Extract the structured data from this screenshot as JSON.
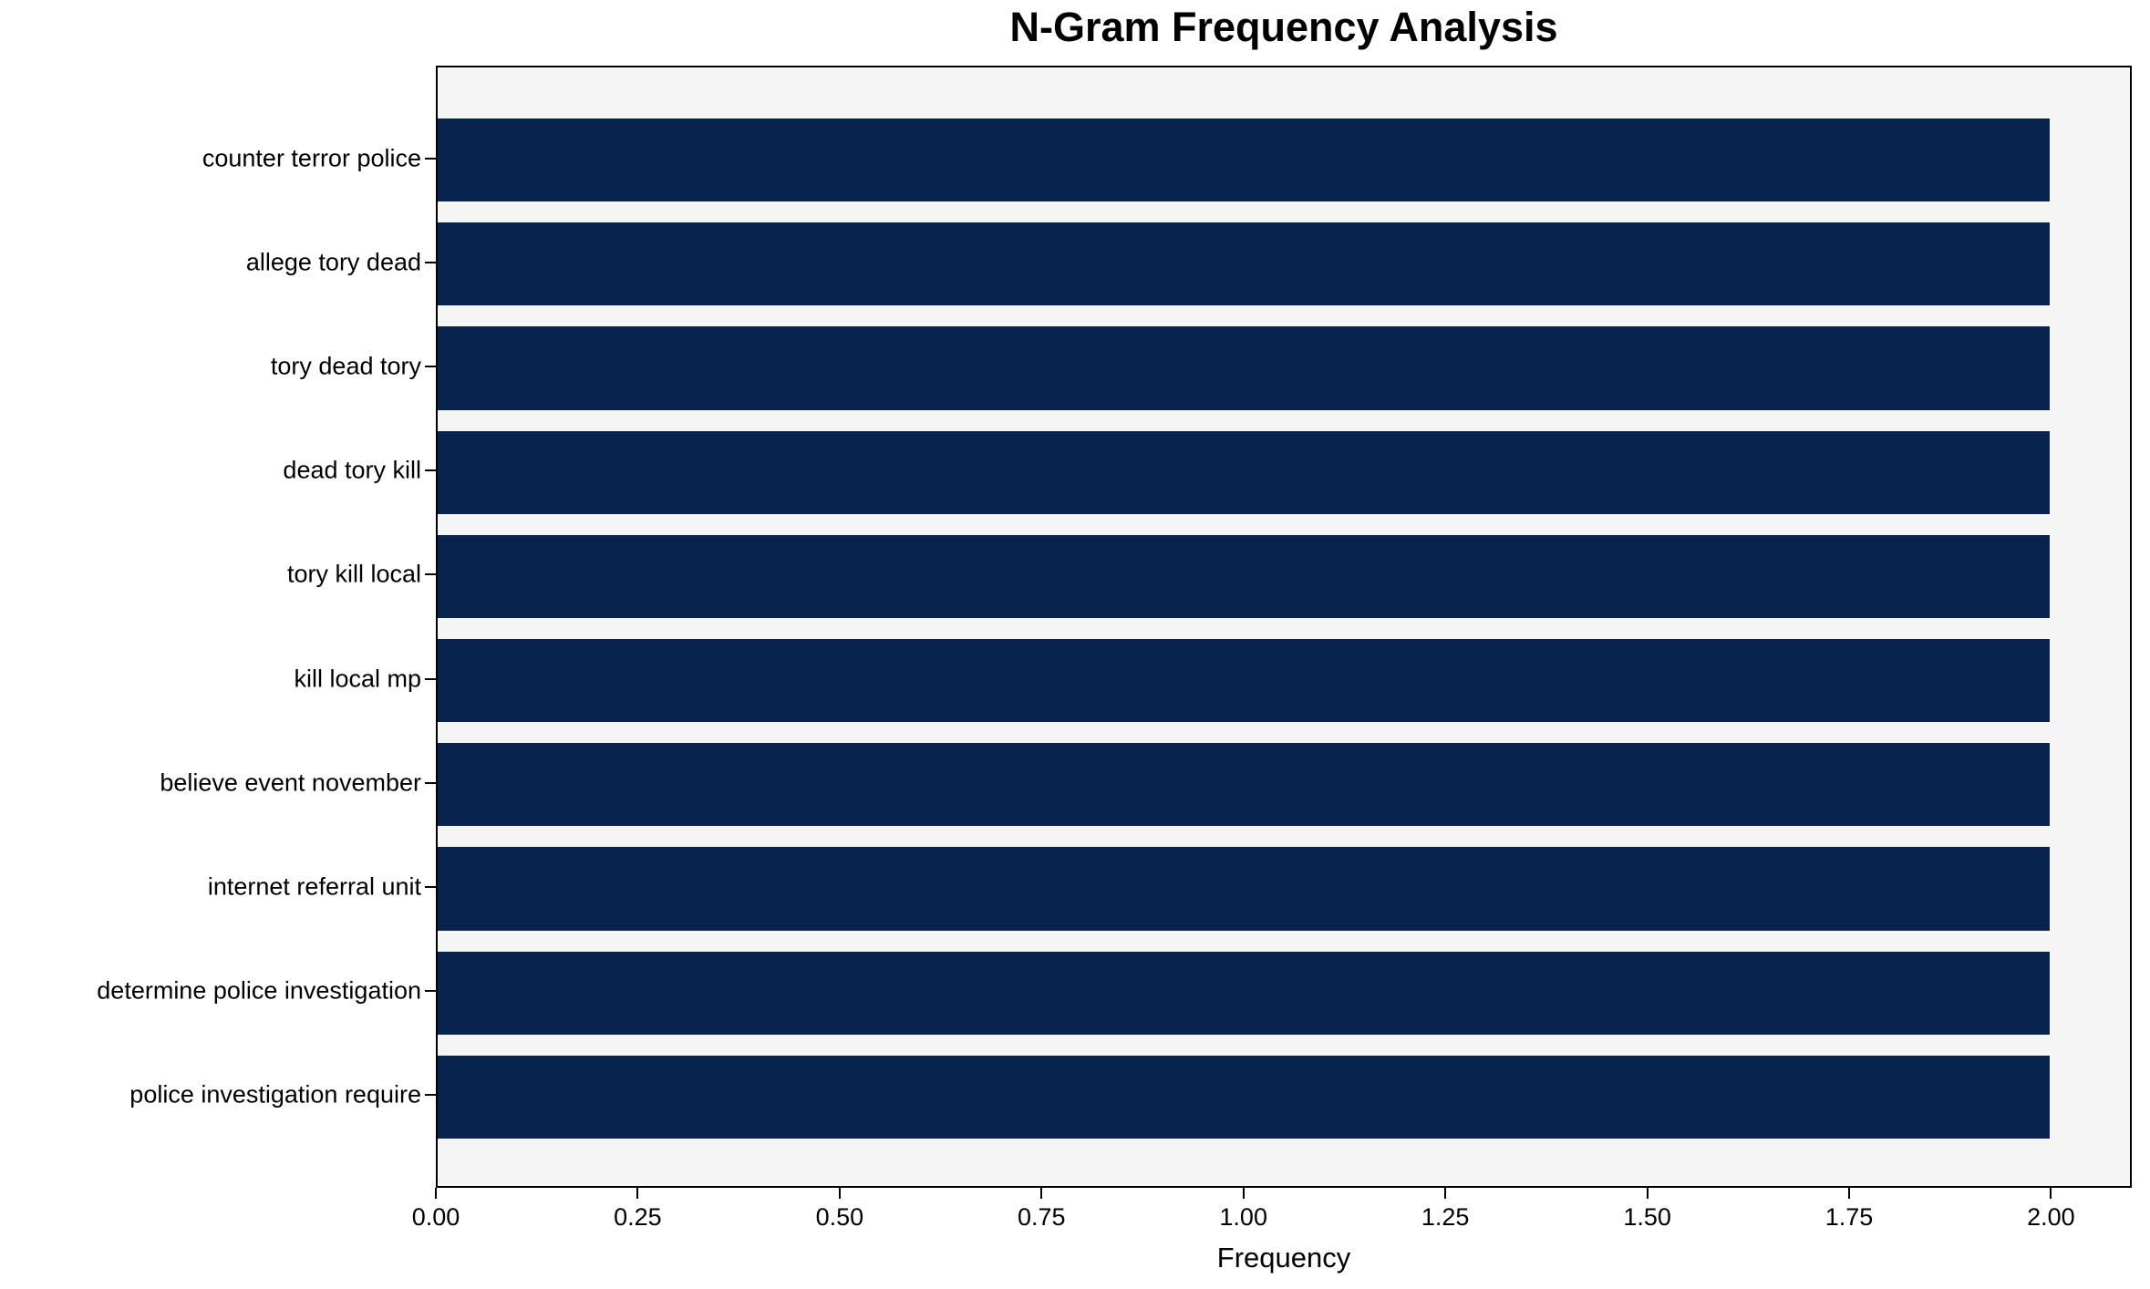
{
  "title": "N-Gram Frequency Analysis",
  "chart_data": {
    "type": "bar",
    "orientation": "horizontal",
    "title": "N-Gram Frequency Analysis",
    "categories": [
      "counter terror police",
      "allege tory dead",
      "tory dead tory",
      "dead tory kill",
      "tory kill local",
      "kill local mp",
      "believe event november",
      "internet referral unit",
      "determine police investigation",
      "police investigation require"
    ],
    "values": [
      2,
      2,
      2,
      2,
      2,
      2,
      2,
      2,
      2,
      2
    ],
    "xlabel": "Frequency",
    "ylabel": "",
    "xlim": [
      0,
      2.1
    ],
    "xticks": [
      {
        "value": 0.0,
        "label": "0.00"
      },
      {
        "value": 0.25,
        "label": "0.25"
      },
      {
        "value": 0.5,
        "label": "0.50"
      },
      {
        "value": 0.75,
        "label": "0.75"
      },
      {
        "value": 1.0,
        "label": "1.00"
      },
      {
        "value": 1.25,
        "label": "1.25"
      },
      {
        "value": 1.5,
        "label": "1.50"
      },
      {
        "value": 1.75,
        "label": "1.75"
      },
      {
        "value": 2.0,
        "label": "2.00"
      }
    ],
    "grid": false,
    "legend_position": "none",
    "bar_height_fraction": 0.8,
    "colors": {
      "bar": "#08234d",
      "plot_background": "#f5f5f5",
      "figure_background": "#ffffff",
      "spine": "#000000",
      "text": "#000000"
    }
  }
}
